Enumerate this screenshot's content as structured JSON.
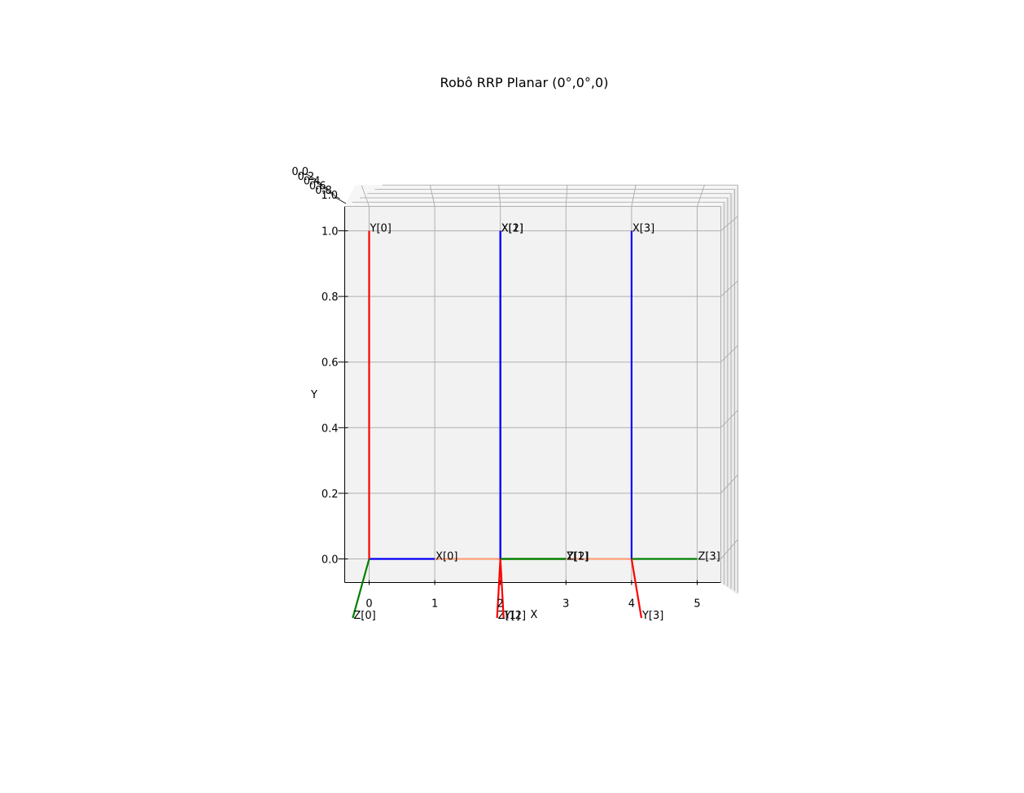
{
  "title": "Robô RRP Planar (0°,0°,0)",
  "chart_data": {
    "type": "line",
    "view": "3d-top",
    "title": "Robô RRP Planar (0°,0°,0)",
    "xlabel": "X",
    "ylabel": "Y",
    "zlabel": "",
    "xlim": [
      -0.38,
      5.38
    ],
    "ylim": [
      -0.07,
      1.07
    ],
    "x_ticks": [
      0,
      1,
      2,
      3,
      4,
      5
    ],
    "y_ticks": [
      0.0,
      0.2,
      0.4,
      0.6,
      0.8,
      1.0
    ],
    "z_ticks": [
      "0.0",
      "0.2",
      "0.4",
      "0.6",
      "0.8",
      "1.0"
    ],
    "grid": true,
    "colors": {
      "x_axis": "#0000ff",
      "y_axis": "#ff0000",
      "z_axis": "#008000",
      "link": "#ffa07a",
      "pane": "#f2f2f2",
      "grid": "#b0b0b0"
    },
    "links": [
      {
        "from": [
          0,
          0
        ],
        "to": [
          2,
          0
        ]
      },
      {
        "from": [
          2,
          0
        ],
        "to": [
          4,
          0
        ]
      }
    ],
    "frames": [
      {
        "origin": [
          0,
          0
        ],
        "axes": [
          {
            "label": "X[0]",
            "end": [
              1,
              0
            ],
            "color": "#0000ff"
          },
          {
            "label": "Y[0]",
            "end": [
              0,
              1
            ],
            "color": "#ff0000"
          },
          {
            "label": "Z[0]",
            "end": [
              -0.25,
              -0.18
            ],
            "color": "#008000"
          }
        ]
      },
      {
        "origin": [
          2,
          0
        ],
        "axes": [
          {
            "label": "X[1]",
            "end": [
              2,
              1
            ],
            "color": "#0000ff"
          },
          {
            "label": "Y[1]",
            "end": [
              3,
              0
            ],
            "color": "#008000"
          },
          {
            "label": "Z[1]",
            "end": [
              1.95,
              -0.18
            ],
            "color": "#ff0000"
          }
        ]
      },
      {
        "origin": [
          2,
          0
        ],
        "axes": [
          {
            "label": "X[2]",
            "end": [
              2,
              1
            ],
            "color": "#0000ff"
          },
          {
            "label": "Z[2]",
            "end": [
              3,
              0
            ],
            "color": "#008000"
          },
          {
            "label": "Y[2]",
            "end": [
              2.05,
              -0.18
            ],
            "color": "#ff0000"
          }
        ]
      },
      {
        "origin": [
          4,
          0
        ],
        "axes": [
          {
            "label": "X[3]",
            "end": [
              4,
              1
            ],
            "color": "#0000ff"
          },
          {
            "label": "Z[3]",
            "end": [
              5,
              0
            ],
            "color": "#008000"
          },
          {
            "label": "Y[3]",
            "end": [
              4.15,
              -0.18
            ],
            "color": "#ff0000"
          }
        ]
      }
    ]
  }
}
